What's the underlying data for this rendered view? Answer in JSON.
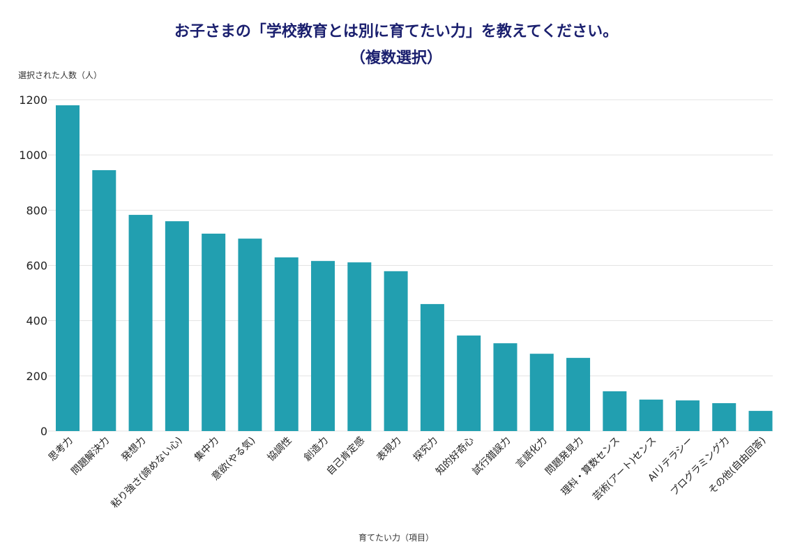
{
  "chart_data": {
    "type": "bar",
    "title": "お子さまの「学校教育とは別に育てたい力」を教えてください。",
    "subtitle": "（複数選択）",
    "ylabel": "選択された人数（人）",
    "xlabel": "育てたい力（項目）",
    "ylim": [
      0,
      1200
    ],
    "yticks": [
      0,
      200,
      400,
      600,
      800,
      1000,
      1200
    ],
    "grid": true,
    "bar_color": "#229fb0",
    "title_color": "#1a1f6e",
    "categories": [
      "思考力",
      "問題解決力",
      "発想力",
      "粘り強さ(諦めない心)",
      "集中力",
      "意欲(やる気)",
      "協調性",
      "創造力",
      "自己肯定感",
      "表現力",
      "探究力",
      "知的好奇心",
      "試行錯誤力",
      "言語化力",
      "問題発見力",
      "理科・算数センス",
      "芸術(アート)センス",
      "AIリテラシー",
      "プログラミング力",
      "その他(自由回答)"
    ],
    "values": [
      1180,
      945,
      783,
      760,
      715,
      697,
      629,
      616,
      611,
      579,
      460,
      346,
      318,
      280,
      265,
      144,
      114,
      111,
      101,
      73
    ]
  }
}
